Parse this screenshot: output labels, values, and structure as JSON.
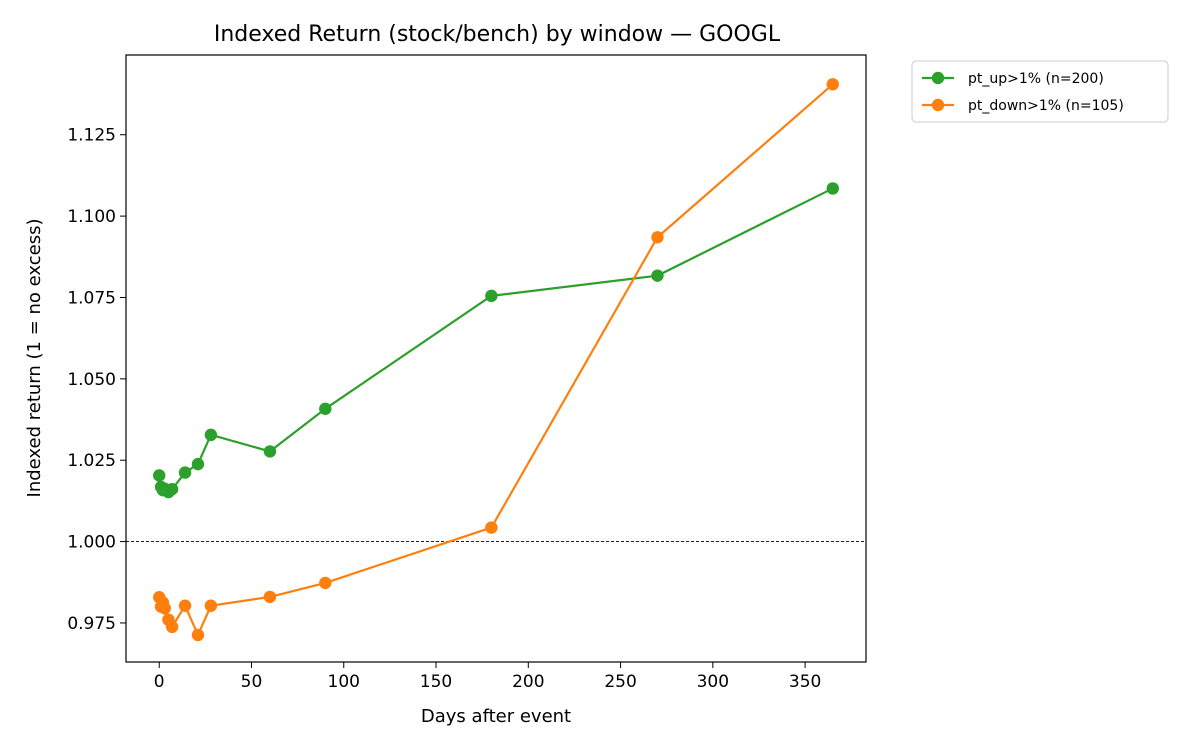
{
  "chart_data": {
    "type": "line",
    "title": "Indexed Return (stock/bench) by window — GOOGL",
    "xlabel": "Days after event",
    "ylabel": "Indexed return (1 = no excess)",
    "xlim": [
      -18,
      383
    ],
    "ylim": [
      0.963,
      1.1495
    ],
    "xticks": [
      0,
      50,
      100,
      150,
      200,
      250,
      300,
      350
    ],
    "xtick_labels": [
      "0",
      "50",
      "100",
      "150",
      "200",
      "250",
      "300",
      "350"
    ],
    "yticks": [
      0.975,
      1.0,
      1.025,
      1.05,
      1.075,
      1.1,
      1.125
    ],
    "ytick_labels": [
      "0.975",
      "1.000",
      "1.025",
      "1.050",
      "1.075",
      "1.100",
      "1.125"
    ],
    "reference_line": {
      "y": 1.0,
      "style": "dashed",
      "color": "#000000"
    },
    "grid": false,
    "legend_position": "outside-top-right",
    "series": [
      {
        "name": "pt_up>1% (n=200)",
        "color": "#2ca02c",
        "x": [
          0,
          1,
          2,
          3,
          5,
          7,
          14,
          21,
          28,
          60,
          90,
          180,
          270,
          365
        ],
        "y": [
          1.0203,
          1.0168,
          1.0158,
          1.0162,
          1.0152,
          1.0161,
          1.0212,
          1.0238,
          1.0328,
          1.0277,
          1.0408,
          1.0755,
          1.0817,
          1.1085
        ]
      },
      {
        "name": "pt_down>1% (n=105)",
        "color": "#ff7f0e",
        "x": [
          0,
          1,
          2,
          3,
          5,
          7,
          14,
          21,
          28,
          60,
          90,
          180,
          270,
          365
        ],
        "y": [
          0.9829,
          0.98,
          0.9813,
          0.9795,
          0.976,
          0.9738,
          0.9803,
          0.9713,
          0.9803,
          0.983,
          0.9873,
          1.0043,
          1.0935,
          1.1405
        ]
      }
    ]
  }
}
